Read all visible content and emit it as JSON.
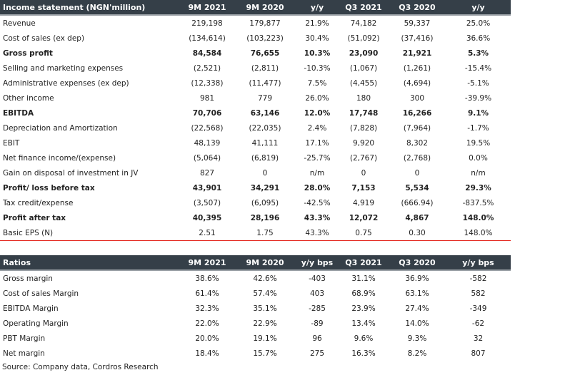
{
  "income": {
    "headers": [
      "Income statement (NGN'million)",
      "9M 2021",
      "9M 2020",
      "y/y",
      "Q3 2021",
      "Q3 2020",
      "y/y"
    ],
    "rows": [
      {
        "label": "Revenue",
        "values": [
          "219,198",
          "179,877",
          "21.9%",
          "74,182",
          "59,337",
          "25.0%"
        ],
        "bold": false
      },
      {
        "label": "Cost of sales (ex dep)",
        "values": [
          "(134,614)",
          "(103,223)",
          "30.4%",
          "(51,092)",
          "(37,416)",
          "36.6%"
        ],
        "bold": false
      },
      {
        "label": "Gross profit",
        "values": [
          "84,584",
          "76,655",
          "10.3%",
          "23,090",
          "21,921",
          "5.3%"
        ],
        "bold": true
      },
      {
        "label": "Selling and marketing expenses",
        "values": [
          "(2,521)",
          "(2,811)",
          "-10.3%",
          "(1,067)",
          "(1,261)",
          "-15.4%"
        ],
        "bold": false
      },
      {
        "label": "Administrative expenses (ex dep)",
        "values": [
          "(12,338)",
          "(11,477)",
          "7.5%",
          "(4,455)",
          "(4,694)",
          "-5.1%"
        ],
        "bold": false
      },
      {
        "label": "Other income",
        "values": [
          "981",
          "779",
          "26.0%",
          "180",
          "300",
          "-39.9%"
        ],
        "bold": false
      },
      {
        "label": "EBITDA",
        "values": [
          "70,706",
          "63,146",
          "12.0%",
          "17,748",
          "16,266",
          "9.1%"
        ],
        "bold": true
      },
      {
        "label": "Depreciation and Amortization",
        "values": [
          "(22,568)",
          "(22,035)",
          "2.4%",
          "(7,828)",
          "(7,964)",
          "-1.7%"
        ],
        "bold": false
      },
      {
        "label": "EBIT",
        "values": [
          "48,139",
          "41,111",
          "17.1%",
          "9,920",
          "8,302",
          "19.5%"
        ],
        "bold": false
      },
      {
        "label": "Net finance income/(expense)",
        "values": [
          "(5,064)",
          "(6,819)",
          "-25.7%",
          "(2,767)",
          "(2,768)",
          "0.0%"
        ],
        "bold": false
      },
      {
        "label": "Gain on disposal of investment in JV",
        "values": [
          "827",
          "0",
          "n/m",
          "0",
          "0",
          "n/m"
        ],
        "bold": false
      },
      {
        "label": "Profit/ loss before tax",
        "values": [
          "43,901",
          "34,291",
          "28.0%",
          "7,153",
          "5,534",
          "29.3%"
        ],
        "bold": true
      },
      {
        "label": "Tax credit/expense",
        "values": [
          "(3,507)",
          "(6,095)",
          "-42.5%",
          "4,919",
          "(666.94)",
          "-837.5%"
        ],
        "bold": false
      },
      {
        "label": "Profit after tax",
        "values": [
          "40,395",
          "28,196",
          "43.3%",
          "12,072",
          "4,867",
          "148.0%"
        ],
        "bold": true
      },
      {
        "label": "Basic EPS (N)",
        "values": [
          "2.51",
          "1.75",
          "43.3%",
          "0.75",
          "0.30",
          "148.0%"
        ],
        "bold": false
      }
    ]
  },
  "ratios": {
    "headers": [
      "Ratios",
      "9M 2021",
      "9M 2020",
      "y/y bps",
      "Q3 2021",
      "Q3 2020",
      "y/y bps"
    ],
    "rows": [
      {
        "label": "Gross margin",
        "values": [
          "38.6%",
          "42.6%",
          "-403",
          "31.1%",
          "36.9%",
          "-582"
        ]
      },
      {
        "label": "Cost of sales Margin",
        "values": [
          "61.4%",
          "57.4%",
          "403",
          "68.9%",
          "63.1%",
          "582"
        ]
      },
      {
        "label": "EBITDA Margin",
        "values": [
          "32.3%",
          "35.1%",
          "-285",
          "23.9%",
          "27.4%",
          "-349"
        ]
      },
      {
        "label": "Operating Margin",
        "values": [
          "22.0%",
          "22.9%",
          "-89",
          "13.4%",
          "14.0%",
          "-62"
        ]
      },
      {
        "label": "PBT Margin",
        "values": [
          "20.0%",
          "19.1%",
          "96",
          "9.6%",
          "9.3%",
          "32"
        ]
      },
      {
        "label": "Net margin",
        "values": [
          "18.4%",
          "15.7%",
          "275",
          "16.3%",
          "8.2%",
          "807"
        ]
      }
    ]
  },
  "source": "Source: Company data, Cordros Research",
  "colors": {
    "header_bg": "#353f48",
    "divider": "#e3241b"
  }
}
